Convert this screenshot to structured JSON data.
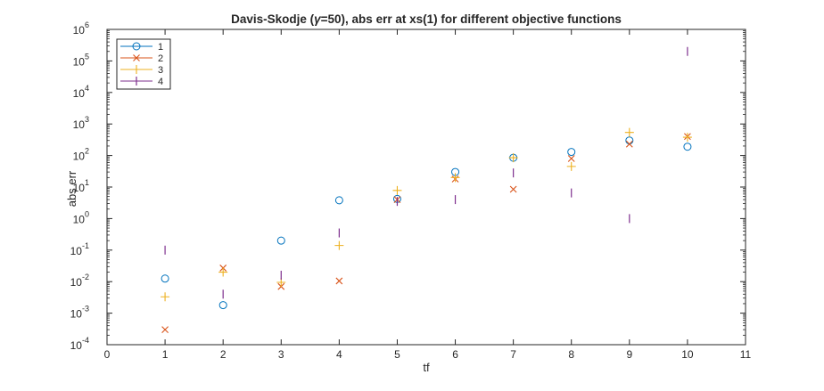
{
  "chart_data": {
    "type": "scatter",
    "title_prefix": "Davis-Skodje (",
    "title_gamma": "γ",
    "title_suffix": "=50), abs err at xs(1) for different objective functions",
    "xlabel": "tf",
    "ylabel": "abs err",
    "xlim": [
      0,
      11
    ],
    "ylim": [
      0.0001,
      1000000
    ],
    "yscale": "log",
    "grid": false,
    "legend_position": "top-left",
    "x_ticks": [
      "0",
      "1",
      "2",
      "3",
      "4",
      "5",
      "6",
      "7",
      "8",
      "9",
      "10",
      "11"
    ],
    "y_ticks": [
      {
        "base": "10",
        "exp": "-4"
      },
      {
        "base": "10",
        "exp": "-3"
      },
      {
        "base": "10",
        "exp": "-2"
      },
      {
        "base": "10",
        "exp": "-1"
      },
      {
        "base": "10",
        "exp": "0"
      },
      {
        "base": "10",
        "exp": "1"
      },
      {
        "base": "10",
        "exp": "2"
      },
      {
        "base": "10",
        "exp": "3"
      },
      {
        "base": "10",
        "exp": "4"
      },
      {
        "base": "10",
        "exp": "5"
      },
      {
        "base": "10",
        "exp": "6"
      }
    ],
    "series": [
      {
        "name": "1",
        "marker": "circle",
        "color": "#0072BD",
        "x": [
          1,
          2,
          3,
          4,
          5,
          6,
          7,
          8,
          9,
          10
        ],
        "y": [
          0.0125,
          0.0018,
          0.2,
          3.8,
          4.2,
          30,
          85,
          130,
          300,
          190
        ]
      },
      {
        "name": "2",
        "marker": "x",
        "color": "#D95319",
        "x": [
          1,
          2,
          3,
          4,
          5,
          6,
          7,
          8,
          9,
          10
        ],
        "y": [
          0.0003,
          0.027,
          0.007,
          0.0105,
          4.0,
          18,
          8.5,
          80,
          230,
          400
        ]
      },
      {
        "name": "3",
        "marker": "plus",
        "color": "#EDB120",
        "x": [
          1,
          2,
          3,
          4,
          5,
          6,
          7,
          8,
          9,
          10
        ],
        "y": [
          0.0033,
          0.02,
          0.0095,
          0.14,
          7.8,
          20,
          85,
          45,
          540,
          380
        ]
      },
      {
        "name": "4",
        "marker": "vline",
        "color": "#7E2F8E",
        "x": [
          1,
          2,
          3,
          4,
          5,
          6,
          7,
          8,
          9,
          10
        ],
        "y": [
          0.1,
          0.004,
          0.016,
          0.35,
          3.5,
          4.0,
          28,
          6.5,
          1.0,
          200000
        ]
      }
    ]
  }
}
